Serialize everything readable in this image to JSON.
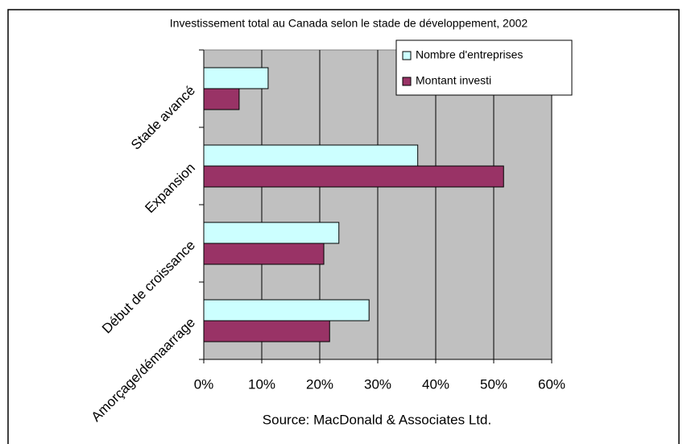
{
  "chart_data": {
    "type": "bar",
    "orientation": "horizontal",
    "title": "Investissement total au Canada selon le stade de développement, 2002",
    "source": "Source:  MacDonald & Associates Ltd.",
    "categories": [
      "Stade avancé",
      "Expansion",
      "Début de croissance",
      "Amorçage/démaarrage"
    ],
    "series": [
      {
        "name": "Nombre d'entreprises",
        "color": "#ccffff",
        "values": [
          11.1,
          36.9,
          23.3,
          28.5
        ]
      },
      {
        "name": "Montant investi",
        "color": "#993366",
        "values": [
          6.1,
          51.7,
          20.7,
          21.7
        ]
      }
    ],
    "xlim": [
      0,
      60
    ],
    "xticks": [
      {
        "value": 0,
        "label": "0%"
      },
      {
        "value": 10,
        "label": "10%"
      },
      {
        "value": 20,
        "label": "20%"
      },
      {
        "value": 30,
        "label": "30%"
      },
      {
        "value": 40,
        "label": "40%"
      },
      {
        "value": 50,
        "label": "50%"
      },
      {
        "value": 60,
        "label": "60%"
      }
    ],
    "grid": true,
    "legend": "top-right"
  }
}
